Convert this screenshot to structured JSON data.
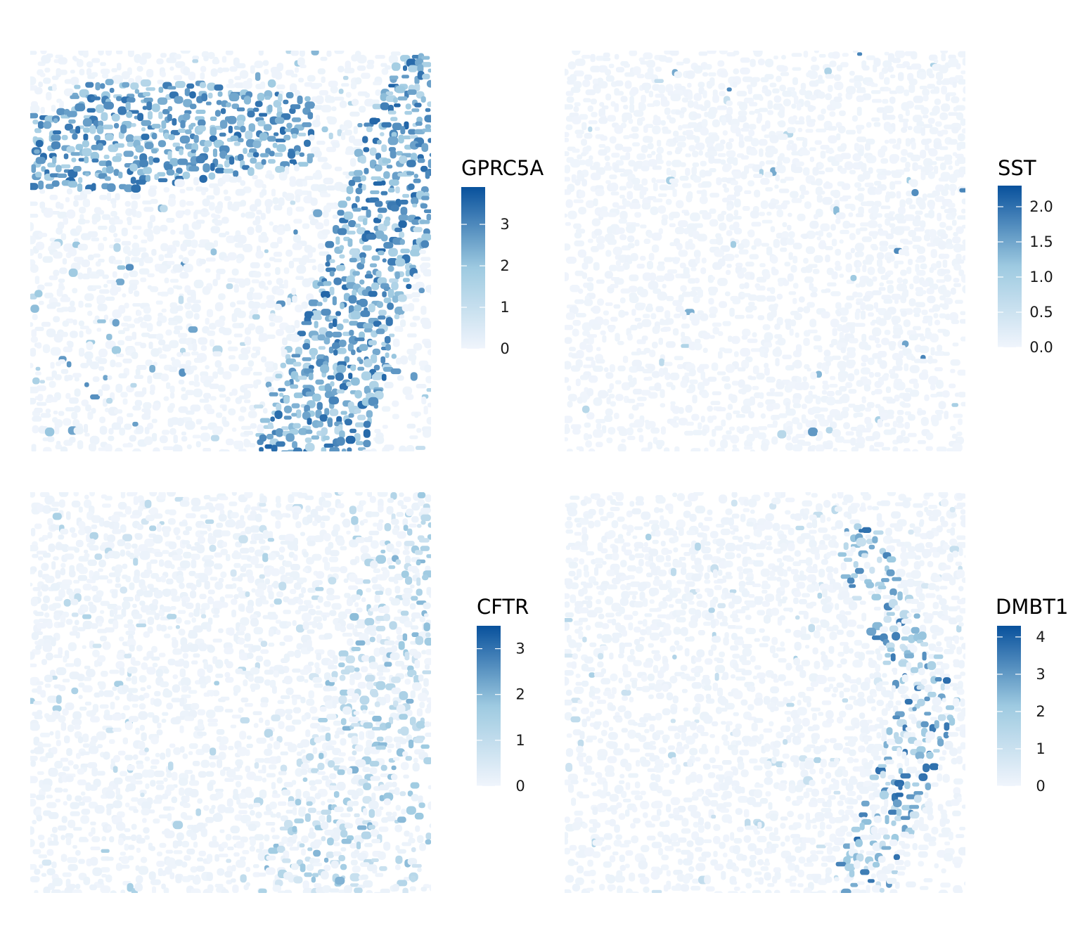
{
  "figure": {
    "background": "#ffffff",
    "colors": {
      "low": "#f0f5fc",
      "mid": "#9ecae1",
      "high": "#08519c",
      "tissue_base": "#eef3fc"
    }
  },
  "chart_data": [
    {
      "type": "heatmap",
      "subtype": "spatial feature plot of cell segmentation polygons",
      "gene": "GPRC5A",
      "legend_title": "GPRC5A",
      "scale_range": [
        0,
        3.9
      ],
      "legend_ticks": [
        0,
        1,
        2,
        3
      ],
      "legend_tick_labels": [
        "0",
        "1",
        "2",
        "3"
      ],
      "pattern": "high expression in the upper epithelial band and the right/lower-right diagonal band; low elsewhere"
    },
    {
      "type": "heatmap",
      "subtype": "spatial feature plot of cell segmentation polygons",
      "gene": "SST",
      "legend_title": "SST",
      "scale_range": [
        0,
        2.3
      ],
      "legend_ticks": [
        0,
        0.5,
        1,
        1.5,
        2
      ],
      "legend_tick_labels": [
        "0.0",
        "0.5",
        "1.0",
        "1.5",
        "2.0"
      ],
      "pattern": "near zero everywhere with a few scattered expressing cells"
    },
    {
      "type": "heatmap",
      "subtype": "spatial feature plot of cell segmentation polygons",
      "gene": "CFTR",
      "legend_title": "CFTR",
      "scale_range": [
        0,
        3.5
      ],
      "legend_ticks": [
        0,
        1,
        2,
        3
      ],
      "legend_tick_labels": [
        "0",
        "1",
        "2",
        "3"
      ],
      "pattern": "low, with moderate expression along the right edge and right diagonal band"
    },
    {
      "type": "heatmap",
      "subtype": "spatial feature plot of cell segmentation polygons",
      "gene": "DMBT1",
      "legend_title": "DMBT1",
      "scale_range": [
        0,
        4.3
      ],
      "legend_ticks": [
        0,
        1,
        2,
        3,
        4
      ],
      "legend_tick_labels": [
        "0",
        "1",
        "2",
        "3",
        "4"
      ],
      "pattern": "expression concentrated in a narrow diagonal strip on the right side and the lower-right corner"
    }
  ]
}
